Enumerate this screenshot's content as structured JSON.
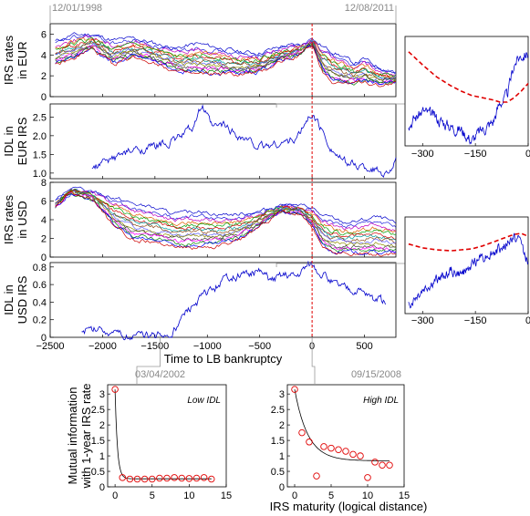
{
  "dates": {
    "left_top": "12/01/1998",
    "right_top": "12/08/2011",
    "bottom_left": "03/04/2002",
    "bottom_right": "09/15/2008"
  },
  "axis_labels": {
    "p1": [
      "IRS rates",
      "in EUR"
    ],
    "p2": [
      "IDL in",
      "EUR IRS"
    ],
    "p3": [
      "IRS rates",
      "in USD"
    ],
    "p4": [
      "IDL in",
      "USD IRS"
    ],
    "xmain": "Time to LB bankruptcy",
    "bottom_y": [
      "Mutual information",
      "with 1-year IRS rate"
    ],
    "bottom_x": "IRS maturity (logical distance)"
  },
  "annotations": {
    "low": "Low IDL",
    "high": "High IDL"
  },
  "chart_data": [
    {
      "type": "line",
      "panel": "IRS rates in EUR",
      "xlim": [
        -2500,
        800
      ],
      "ylim": [
        0,
        7
      ],
      "yticks": [
        "0",
        "2",
        "4",
        "6"
      ],
      "series_count": 15,
      "x": [
        -2450,
        -2300,
        -2100,
        -1900,
        -1700,
        -1500,
        -1300,
        -1100,
        -900,
        -700,
        -500,
        -300,
        -100,
        0,
        100,
        200,
        300,
        400,
        500,
        600,
        700,
        800
      ],
      "top": [
        5.3,
        5.9,
        6.0,
        5.4,
        5.6,
        5.1,
        4.6,
        5.1,
        4.7,
        4.3,
        4.2,
        4.8,
        5.0,
        5.5,
        4.8,
        4.3,
        3.8,
        3.2,
        3.6,
        3.0,
        2.6,
        2.3
      ],
      "bottom": [
        3.1,
        3.5,
        4.6,
        3.1,
        3.8,
        3.3,
        2.4,
        2.1,
        2.2,
        2.1,
        2.3,
        3.4,
        4.1,
        5.0,
        2.4,
        1.4,
        1.3,
        1.2,
        1.5,
        1.1,
        1.2,
        1.3
      ]
    },
    {
      "type": "line",
      "panel": "IDL in EUR IRS",
      "xlim": [
        -2500,
        800
      ],
      "ylim": [
        0.85,
        2.85
      ],
      "yticks": [
        "1.0",
        "1.5",
        "2.0",
        "2.5"
      ],
      "x": [
        -2100,
        -1900,
        -1700,
        -1500,
        -1300,
        -1150,
        -1050,
        -950,
        -850,
        -700,
        -500,
        -300,
        -150,
        -50,
        0,
        100,
        200,
        300,
        450,
        600,
        700,
        800
      ],
      "y": [
        1.1,
        1.4,
        1.6,
        1.7,
        1.9,
        2.2,
        2.8,
        2.2,
        2.3,
        2.0,
        1.7,
        1.8,
        1.9,
        2.4,
        2.6,
        2.1,
        1.6,
        1.3,
        1.2,
        1.1,
        1.0,
        1.3
      ]
    },
    {
      "type": "line",
      "panel": "IRS rates in USD",
      "xlim": [
        -2500,
        800
      ],
      "ylim": [
        0,
        8
      ],
      "yticks": [
        "0",
        "2",
        "4",
        "6",
        "8"
      ],
      "series_count": 15,
      "x": [
        -2450,
        -2300,
        -2100,
        -1900,
        -1700,
        -1500,
        -1300,
        -1100,
        -900,
        -700,
        -500,
        -300,
        -100,
        0,
        100,
        200,
        300,
        400,
        500,
        600,
        700,
        800
      ],
      "top": [
        6.0,
        7.3,
        7.0,
        6.4,
        5.7,
        5.2,
        4.6,
        4.9,
        4.6,
        4.6,
        4.9,
        5.6,
        5.5,
        5.3,
        4.4,
        4.2,
        3.7,
        3.8,
        4.0,
        4.3,
        4.1,
        3.5
      ],
      "bottom": [
        5.3,
        6.8,
        6.2,
        3.4,
        1.8,
        1.6,
        1.1,
        1.0,
        1.2,
        1.8,
        3.3,
        4.8,
        4.6,
        3.1,
        1.2,
        0.3,
        0.4,
        0.3,
        0.3,
        0.3,
        0.3,
        0.3
      ]
    },
    {
      "type": "line",
      "panel": "IDL in USD IRS",
      "xlim": [
        -2500,
        800
      ],
      "ylim": [
        0,
        0.85
      ],
      "yticks": [
        "0",
        "0.2",
        "0.4",
        "0.6",
        "0.8"
      ],
      "x": [
        -2200,
        -2000,
        -1900,
        -1500,
        -1350,
        -1200,
        -1000,
        -800,
        -600,
        -500,
        -400,
        -250,
        -150,
        -50,
        0,
        100,
        200,
        300,
        400,
        500,
        600,
        700
      ],
      "y": [
        0.06,
        0.12,
        0.02,
        0.02,
        0.02,
        0.28,
        0.5,
        0.68,
        0.72,
        0.75,
        0.65,
        0.72,
        0.7,
        0.82,
        0.84,
        0.72,
        0.62,
        0.57,
        0.54,
        0.5,
        0.44,
        0.4
      ]
    },
    {
      "type": "line",
      "panel": "main x axis",
      "xlabel": "Time to LB bankruptcy",
      "xticks": [
        "−2500",
        "−2000",
        "−1500",
        "−1000",
        "−500",
        "0",
        "500"
      ],
      "xtick_values": [
        -2500,
        -2000,
        -1500,
        -1000,
        -500,
        0,
        500
      ]
    },
    {
      "type": "line",
      "panel": "EUR inset",
      "xlim": [
        -350,
        0
      ],
      "xticks": [
        "−300",
        "−150",
        "0"
      ],
      "x": [
        -340,
        -300,
        -260,
        -220,
        -190,
        -160,
        -130,
        -100,
        -80,
        -60,
        -40,
        -20,
        0
      ],
      "blue": [
        0.2,
        0.32,
        0.25,
        0.18,
        0.15,
        0.05,
        0.15,
        0.22,
        0.4,
        0.45,
        0.75,
        0.83,
        0.85
      ],
      "red": [
        0.86,
        0.74,
        0.63,
        0.55,
        0.5,
        0.46,
        0.44,
        0.42,
        0.4,
        0.4,
        0.44,
        0.5,
        0.57
      ]
    },
    {
      "type": "line",
      "panel": "USD inset",
      "xlim": [
        -350,
        0
      ],
      "xticks": [
        "−300",
        "−150",
        "0"
      ],
      "x": [
        -340,
        -300,
        -260,
        -220,
        -190,
        -160,
        -130,
        -100,
        -70,
        -40,
        -20,
        0
      ],
      "blue": [
        0.1,
        0.25,
        0.35,
        0.45,
        0.4,
        0.5,
        0.6,
        0.63,
        0.7,
        0.8,
        0.75,
        0.5
      ],
      "red": [
        0.72,
        0.68,
        0.66,
        0.65,
        0.66,
        0.67,
        0.7,
        0.74,
        0.78,
        0.82,
        0.83,
        0.8
      ]
    },
    {
      "type": "scatter",
      "panel": "Low IDL",
      "xlim": [
        -1,
        15
      ],
      "ylim": [
        0,
        3.3
      ],
      "xticks": [
        "0",
        "5",
        "10",
        "15"
      ],
      "yticks": [
        "0",
        "0.5",
        "1",
        "1.5",
        "2",
        "2.5",
        "3"
      ],
      "x": [
        0,
        1,
        2,
        3,
        4,
        5,
        6,
        7,
        8,
        9,
        10,
        11,
        12,
        13
      ],
      "y": [
        3.15,
        0.3,
        0.25,
        0.25,
        0.25,
        0.25,
        0.28,
        0.28,
        0.3,
        0.28,
        0.27,
        0.28,
        0.3,
        0.25
      ],
      "fit": [
        3.15,
        0.3,
        0.26,
        0.26,
        0.26,
        0.26,
        0.26,
        0.26,
        0.26,
        0.26,
        0.26,
        0.26,
        0.26,
        0.26
      ]
    },
    {
      "type": "scatter",
      "panel": "High IDL",
      "xlim": [
        -1,
        15
      ],
      "ylim": [
        0,
        3.3
      ],
      "xticks": [
        "0",
        "5",
        "10",
        "15"
      ],
      "yticks": [
        "0",
        "0.5",
        "1",
        "1.5",
        "2",
        "2.5",
        "3"
      ],
      "x": [
        0,
        1,
        2,
        3,
        4,
        5,
        6,
        7,
        8,
        9,
        10,
        11,
        12,
        13
      ],
      "y": [
        3.15,
        1.75,
        1.45,
        0.35,
        1.3,
        1.25,
        1.2,
        1.15,
        1.05,
        1.0,
        0.3,
        0.8,
        0.7,
        0.7
      ],
      "fit": [
        3.15,
        1.75,
        1.35,
        1.15,
        1.02,
        0.95,
        0.9,
        0.88,
        0.86,
        0.85,
        0.84,
        0.84,
        0.84,
        0.84
      ]
    }
  ]
}
